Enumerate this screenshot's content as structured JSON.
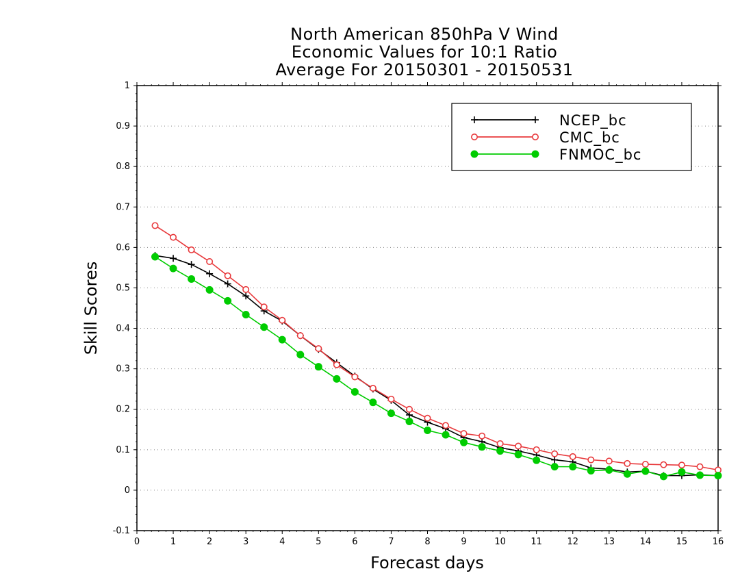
{
  "chart_data": {
    "type": "line",
    "title": [
      "North American 850hPa V Wind",
      "Economic Values for 10:1 Ratio",
      "Average For 20150301 - 20150531"
    ],
    "xlabel": "Forecast days",
    "ylabel": "Skill Scores",
    "xlim": [
      0,
      16
    ],
    "ylim": [
      -0.1,
      1
    ],
    "xticks": [
      0,
      1,
      2,
      3,
      4,
      5,
      6,
      7,
      8,
      9,
      10,
      11,
      12,
      13,
      14,
      15,
      16
    ],
    "yticks": [
      -0.1,
      0,
      0.1,
      0.2,
      0.3,
      0.4,
      0.5,
      0.6,
      0.7,
      0.8,
      0.9,
      1
    ],
    "ytick_labels": [
      "-0.1",
      "0",
      "0.1",
      "0.2",
      "0.3",
      "0.4",
      "0.5",
      "0.6",
      "0.7",
      "0.8",
      "0.9",
      "1"
    ],
    "grid": "horizontal-dotted",
    "legend_position": "top-right",
    "x": [
      0.5,
      1,
      1.5,
      2,
      2.5,
      3,
      3.5,
      4,
      4.5,
      5,
      5.5,
      6,
      6.5,
      7,
      7.5,
      8,
      8.5,
      9,
      9.5,
      10,
      10.5,
      11,
      11.5,
      12,
      12.5,
      13,
      13.5,
      14,
      14.5,
      15,
      15.5,
      16
    ],
    "series": [
      {
        "name": "NCEP_bc",
        "color": "#000000",
        "marker": "plus",
        "values": [
          0.58,
          0.573,
          0.558,
          0.535,
          0.51,
          0.48,
          0.443,
          0.418,
          0.382,
          0.348,
          0.315,
          0.282,
          0.25,
          0.222,
          0.186,
          0.168,
          0.152,
          0.13,
          0.12,
          0.105,
          0.097,
          0.087,
          0.075,
          0.07,
          0.055,
          0.052,
          0.045,
          0.047,
          0.036,
          0.036,
          0.038,
          0.036
        ]
      },
      {
        "name": "CMC_bc",
        "color": "#e8393c",
        "marker": "open-circle",
        "values": [
          0.654,
          0.625,
          0.594,
          0.565,
          0.53,
          0.496,
          0.453,
          0.42,
          0.382,
          0.35,
          0.31,
          0.28,
          0.252,
          0.225,
          0.2,
          0.178,
          0.16,
          0.14,
          0.134,
          0.115,
          0.109,
          0.1,
          0.09,
          0.083,
          0.075,
          0.072,
          0.066,
          0.064,
          0.063,
          0.062,
          0.058,
          0.05
        ]
      },
      {
        "name": "FNMOC_bc",
        "color": "#00cc00",
        "marker": "filled-circle",
        "values": [
          0.577,
          0.548,
          0.522,
          0.495,
          0.468,
          0.434,
          0.403,
          0.372,
          0.335,
          0.305,
          0.275,
          0.243,
          0.217,
          0.19,
          0.17,
          0.148,
          0.137,
          0.118,
          0.107,
          0.097,
          0.088,
          0.074,
          0.058,
          0.058,
          0.048,
          0.05,
          0.04,
          0.047,
          0.034,
          0.045,
          0.037,
          0.036
        ]
      }
    ]
  }
}
